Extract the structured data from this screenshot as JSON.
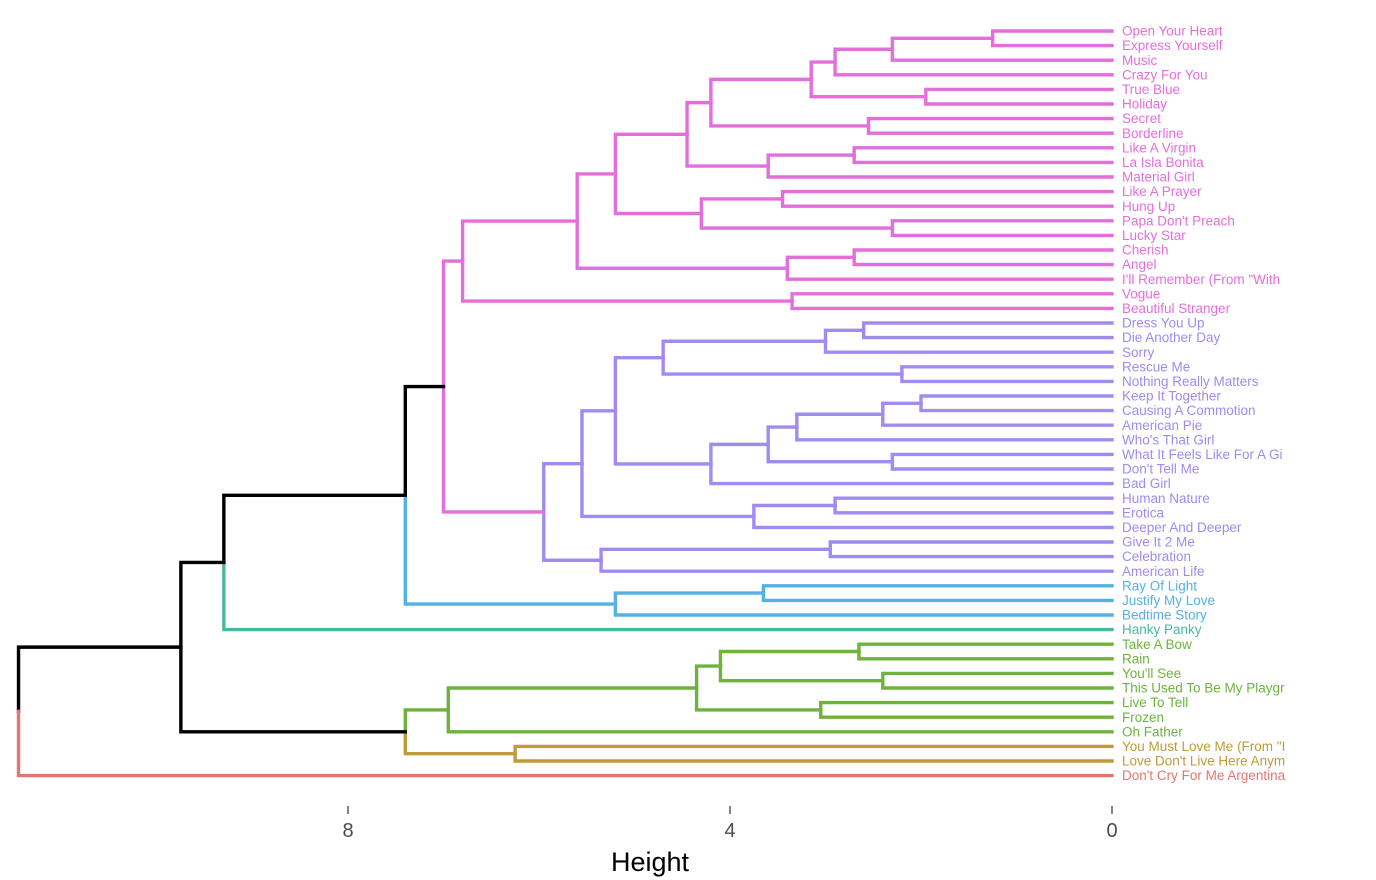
{
  "chart_data": {
    "type": "dendrogram",
    "orientation": "horizontal",
    "xlabel": "Height",
    "xlim": [
      11.5,
      -2
    ],
    "ticks": [
      8,
      4,
      0
    ],
    "tick_labels": [
      "8",
      "4",
      "0"
    ],
    "colors": {
      "pink": "#e36fdc",
      "purple": "#a18bf0",
      "blue": "#55b1e3",
      "teal": "#4ab8a0",
      "green": "#6fb33d",
      "gold": "#bf9c38",
      "red": "#e3776f",
      "root": "#000000"
    },
    "leaves": [
      {
        "label": "Open Your Heart",
        "color": "pink"
      },
      {
        "label": "Express Yourself",
        "color": "pink"
      },
      {
        "label": "Music",
        "color": "pink"
      },
      {
        "label": "Crazy For You",
        "color": "pink"
      },
      {
        "label": "True Blue",
        "color": "pink"
      },
      {
        "label": "Holiday",
        "color": "pink"
      },
      {
        "label": "Secret",
        "color": "pink"
      },
      {
        "label": "Borderline",
        "color": "pink"
      },
      {
        "label": "Like A Virgin",
        "color": "pink"
      },
      {
        "label": "La Isla Bonita",
        "color": "pink"
      },
      {
        "label": "Material Girl",
        "color": "pink"
      },
      {
        "label": "Like A Prayer",
        "color": "pink"
      },
      {
        "label": "Hung Up",
        "color": "pink"
      },
      {
        "label": "Papa Don't Preach",
        "color": "pink"
      },
      {
        "label": "Lucky Star",
        "color": "pink"
      },
      {
        "label": "Cherish",
        "color": "pink"
      },
      {
        "label": "Angel",
        "color": "pink"
      },
      {
        "label": "I'll Remember (From \"With",
        "color": "pink"
      },
      {
        "label": "Vogue",
        "color": "pink"
      },
      {
        "label": "Beautiful Stranger",
        "color": "pink"
      },
      {
        "label": "Dress You Up",
        "color": "purple"
      },
      {
        "label": "Die Another Day",
        "color": "purple"
      },
      {
        "label": "Sorry",
        "color": "purple"
      },
      {
        "label": "Rescue Me",
        "color": "purple"
      },
      {
        "label": "Nothing Really Matters",
        "color": "purple"
      },
      {
        "label": "Keep It Together",
        "color": "purple"
      },
      {
        "label": "Causing A Commotion",
        "color": "purple"
      },
      {
        "label": "American Pie",
        "color": "purple"
      },
      {
        "label": "Who's That Girl",
        "color": "purple"
      },
      {
        "label": "What It Feels Like For A Gi",
        "color": "purple"
      },
      {
        "label": "Don't Tell Me",
        "color": "purple"
      },
      {
        "label": "Bad Girl",
        "color": "purple"
      },
      {
        "label": "Human Nature",
        "color": "purple"
      },
      {
        "label": "Erotica",
        "color": "purple"
      },
      {
        "label": "Deeper And Deeper",
        "color": "purple"
      },
      {
        "label": "Give It 2 Me",
        "color": "purple"
      },
      {
        "label": "Celebration",
        "color": "purple"
      },
      {
        "label": "American Life",
        "color": "purple"
      },
      {
        "label": "Ray Of Light",
        "color": "blue"
      },
      {
        "label": "Justify My Love",
        "color": "blue"
      },
      {
        "label": "Bedtime Story",
        "color": "blue"
      },
      {
        "label": "Hanky Panky",
        "color": "teal"
      },
      {
        "label": "Take A Bow",
        "color": "green"
      },
      {
        "label": "Rain",
        "color": "green"
      },
      {
        "label": "You'll See",
        "color": "green"
      },
      {
        "label": "This Used To Be My Playgr",
        "color": "green"
      },
      {
        "label": "Live To Tell",
        "color": "green"
      },
      {
        "label": "Frozen",
        "color": "green"
      },
      {
        "label": "Oh Father",
        "color": "green"
      },
      {
        "label": "You Must Love Me (From \"I",
        "color": "gold"
      },
      {
        "label": "Love Don't Live Here Anym",
        "color": "gold"
      },
      {
        "label": "Don't Cry For Me Argentina",
        "color": "red"
      }
    ],
    "merges": [
      {
        "id": "p1",
        "h": 1.25,
        "children": [
          "L0",
          "L1"
        ],
        "color": "pink"
      },
      {
        "id": "p2",
        "h": 2.3,
        "children": [
          "p1",
          "L2"
        ],
        "color": "pink"
      },
      {
        "id": "p3",
        "h": 2.9,
        "children": [
          "p2",
          "L3"
        ],
        "color": "pink"
      },
      {
        "id": "p4",
        "h": 1.95,
        "children": [
          "L4",
          "L5"
        ],
        "color": "pink"
      },
      {
        "id": "p5",
        "h": 3.15,
        "children": [
          "p3",
          "p4"
        ],
        "color": "pink"
      },
      {
        "id": "p6",
        "h": 2.55,
        "children": [
          "L6",
          "L7"
        ],
        "color": "pink"
      },
      {
        "id": "p7",
        "h": 4.2,
        "children": [
          "p5",
          "p6"
        ],
        "color": "pink"
      },
      {
        "id": "p8",
        "h": 2.7,
        "children": [
          "L8",
          "L9"
        ],
        "color": "pink"
      },
      {
        "id": "p9",
        "h": 3.6,
        "children": [
          "p8",
          "L10"
        ],
        "color": "pink"
      },
      {
        "id": "p10",
        "h": 4.45,
        "children": [
          "p7",
          "p9"
        ],
        "color": "pink"
      },
      {
        "id": "p11",
        "h": 3.45,
        "children": [
          "L11",
          "L12"
        ],
        "color": "pink"
      },
      {
        "id": "p12",
        "h": 2.3,
        "children": [
          "L13",
          "L14"
        ],
        "color": "pink"
      },
      {
        "id": "p13",
        "h": 4.3,
        "children": [
          "p11",
          "p12"
        ],
        "color": "pink"
      },
      {
        "id": "p14",
        "h": 5.2,
        "children": [
          "p10",
          "p13"
        ],
        "color": "pink"
      },
      {
        "id": "p15",
        "h": 2.7,
        "children": [
          "L15",
          "L16"
        ],
        "color": "pink"
      },
      {
        "id": "p16",
        "h": 3.4,
        "children": [
          "p15",
          "L17"
        ],
        "color": "pink"
      },
      {
        "id": "p17",
        "h": 5.6,
        "children": [
          "p14",
          "p16"
        ],
        "color": "pink"
      },
      {
        "id": "p18",
        "h": 3.35,
        "children": [
          "L18",
          "L19"
        ],
        "color": "pink"
      },
      {
        "id": "p19",
        "h": 6.8,
        "children": [
          "p17",
          "p18"
        ],
        "color": "pink"
      },
      {
        "id": "v1",
        "h": 2.6,
        "children": [
          "L20",
          "L21"
        ],
        "color": "purple"
      },
      {
        "id": "v2",
        "h": 3.0,
        "children": [
          "v1",
          "L22"
        ],
        "color": "purple"
      },
      {
        "id": "v3",
        "h": 2.2,
        "children": [
          "L23",
          "L24"
        ],
        "color": "purple"
      },
      {
        "id": "v4",
        "h": 4.7,
        "children": [
          "v2",
          "v3"
        ],
        "color": "purple"
      },
      {
        "id": "v5",
        "h": 2.0,
        "children": [
          "L25",
          "L26"
        ],
        "color": "purple"
      },
      {
        "id": "v6",
        "h": 2.4,
        "children": [
          "v5",
          "L27"
        ],
        "color": "purple"
      },
      {
        "id": "v7",
        "h": 3.3,
        "children": [
          "v6",
          "L28"
        ],
        "color": "purple"
      },
      {
        "id": "v8",
        "h": 2.3,
        "children": [
          "L29",
          "L30"
        ],
        "color": "purple"
      },
      {
        "id": "v9",
        "h": 3.6,
        "children": [
          "v7",
          "v8"
        ],
        "color": "purple"
      },
      {
        "id": "v10",
        "h": 4.2,
        "children": [
          "v9",
          "L31"
        ],
        "color": "purple"
      },
      {
        "id": "v11",
        "h": 5.2,
        "children": [
          "v4",
          "v10"
        ],
        "color": "purple"
      },
      {
        "id": "v12",
        "h": 2.9,
        "children": [
          "L32",
          "L33"
        ],
        "color": "purple"
      },
      {
        "id": "v13",
        "h": 3.75,
        "children": [
          "v12",
          "L34"
        ],
        "color": "purple"
      },
      {
        "id": "v14",
        "h": 5.55,
        "children": [
          "v11",
          "v13"
        ],
        "color": "purple"
      },
      {
        "id": "v15",
        "h": 2.95,
        "children": [
          "L35",
          "L36"
        ],
        "color": "purple"
      },
      {
        "id": "v16",
        "h": 5.35,
        "children": [
          "v15",
          "L37"
        ],
        "color": "purple"
      },
      {
        "id": "v17",
        "h": 5.95,
        "children": [
          "v14",
          "v16"
        ],
        "color": "purple"
      },
      {
        "id": "pv",
        "h": 7.0,
        "children": [
          "p19",
          "v17"
        ],
        "color": "pink"
      },
      {
        "id": "b1",
        "h": 3.65,
        "children": [
          "L38",
          "L39"
        ],
        "color": "blue"
      },
      {
        "id": "b2",
        "h": 5.2,
        "children": [
          "b1",
          "L40"
        ],
        "color": "blue"
      },
      {
        "id": "m1",
        "h": 7.4,
        "children": [
          "pv",
          "b2"
        ],
        "color": "root",
        "lower_color": "blue"
      },
      {
        "id": "m2",
        "h": 9.3,
        "children": [
          "m1",
          "L41"
        ],
        "color": "root",
        "lower_color": "teal"
      },
      {
        "id": "g1",
        "h": 2.65,
        "children": [
          "L42",
          "L43"
        ],
        "color": "green"
      },
      {
        "id": "g2",
        "h": 2.4,
        "children": [
          "L44",
          "L45"
        ],
        "color": "green"
      },
      {
        "id": "g3",
        "h": 4.1,
        "children": [
          "g1",
          "g2"
        ],
        "color": "green"
      },
      {
        "id": "g4",
        "h": 3.05,
        "children": [
          "L46",
          "L47"
        ],
        "color": "green"
      },
      {
        "id": "g5",
        "h": 4.35,
        "children": [
          "g3",
          "g4"
        ],
        "color": "green"
      },
      {
        "id": "g6",
        "h": 6.95,
        "children": [
          "g5",
          "L48"
        ],
        "color": "green"
      },
      {
        "id": "y1",
        "h": 6.25,
        "children": [
          "L49",
          "L50"
        ],
        "color": "gold"
      },
      {
        "id": "gy",
        "h": 7.4,
        "children": [
          "g6",
          "y1"
        ],
        "color": "green",
        "lower_color": "gold"
      },
      {
        "id": "m3",
        "h": 9.75,
        "children": [
          "m2",
          "gy"
        ],
        "color": "root"
      },
      {
        "id": "root",
        "h": 11.45,
        "children": [
          "m3",
          "L51"
        ],
        "color": "root",
        "lower_color": "red"
      }
    ]
  }
}
